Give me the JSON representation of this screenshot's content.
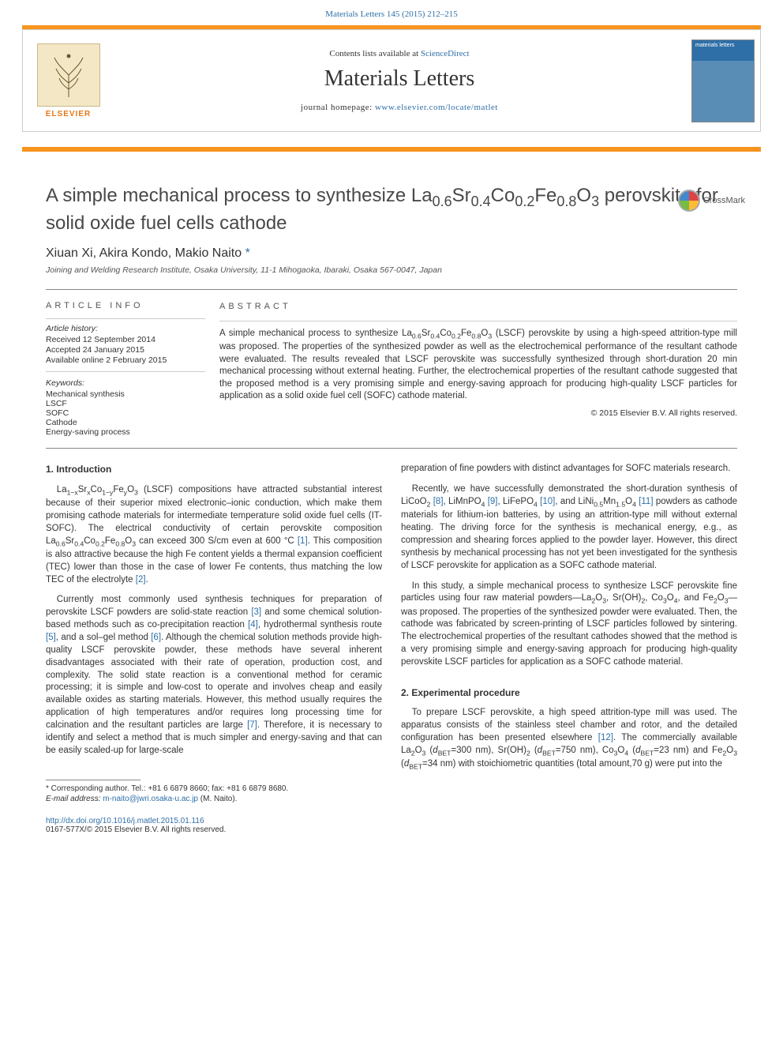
{
  "top_link": {
    "citation": "Materials Letters 145 (2015) 212–215",
    "color": "#2f6fa7"
  },
  "header": {
    "contents_prefix": "Contents lists available at ",
    "contents_link": "ScienceDirect",
    "journal_name": "Materials Letters",
    "homepage_prefix": "journal homepage: ",
    "homepage_url": "www.elsevier.com/locate/matlet",
    "publisher_name": "ELSEVIER",
    "cover_label": "materials letters",
    "orange_color": "#f7941e"
  },
  "title": {
    "html": "A simple mechanical process to synthesize La<sub>0.6</sub>Sr<sub>0.4</sub>Co<sub>0.2</sub>Fe<sub>0.8</sub>O<sub>3</sub> perovskite for solid oxide fuel cells cathode",
    "crossmark_label": "CrossMark"
  },
  "authors": {
    "list": "Xiuan Xi, Akira Kondo, Makio Naito",
    "corr_marker": "*"
  },
  "affiliation": "Joining and Welding Research Institute, Osaka University, 11-1 Mihogaoka, Ibaraki, Osaka 567-0047, Japan",
  "article_info": {
    "heading": "ARTICLE INFO",
    "history_label": "Article history:",
    "received": "Received 12 September 2014",
    "accepted": "Accepted 24 January 2015",
    "online": "Available online 2 February 2015",
    "keywords_label": "Keywords:",
    "keywords": [
      "Mechanical synthesis",
      "LSCF",
      "SOFC",
      "Cathode",
      "Energy-saving process"
    ]
  },
  "abstract": {
    "heading": "ABSTRACT",
    "text_html": "A simple mechanical process to synthesize La<sub>0.6</sub>Sr<sub>0.4</sub>Co<sub>0.2</sub>Fe<sub>0.8</sub>O<sub>3</sub> (LSCF) perovskite by using a high-speed attrition-type mill was proposed. The properties of the synthesized powder as well as the electrochemical performance of the resultant cathode were evaluated. The results revealed that LSCF perovskite was successfully synthesized through short-duration 20 min mechanical processing without external heating. Further, the electrochemical properties of the resultant cathode suggested that the proposed method is a very promising simple and energy-saving approach for producing high-quality LSCF particles for application as a solid oxide fuel cell (SOFC) cathode material.",
    "copyright": "© 2015 Elsevier B.V. All rights reserved."
  },
  "sections": {
    "intro_heading": "1.  Introduction",
    "intro_p1_html": "La<sub>1−x</sub>Sr<sub>x</sub>Co<sub>1−y</sub>Fe<sub>y</sub>O<sub>3</sub> (LSCF) compositions have attracted substantial interest because of their superior mixed electronic–ionic conduction, which make them promising cathode materials for intermediate temperature solid oxide fuel cells (IT-SOFC). The electrical conductivity of certain perovskite composition La<sub>0.6</sub>Sr<sub>0.4</sub>Co<sub>0.2</sub>Fe<sub>0.8</sub>O<sub>3</sub> can exceed 300 S/cm even at 600 °C <a class=\"ref\" href=\"#\">[1]</a>. This composition is also attractive because the high Fe content yields a thermal expansion coefficient (TEC) lower than those in the case of lower Fe contents, thus matching the low TEC of the electrolyte <a class=\"ref\" href=\"#\">[2]</a>.",
    "intro_p2_html": "Currently most commonly used synthesis techniques for preparation of perovskite LSCF powders are solid-state reaction <a class=\"ref\" href=\"#\">[3]</a> and some chemical solution-based methods such as co-precipitation reaction <a class=\"ref\" href=\"#\">[4]</a>, hydrothermal synthesis route <a class=\"ref\" href=\"#\">[5]</a>, and a sol–gel method <a class=\"ref\" href=\"#\">[6]</a>. Although the chemical solution methods provide high-quality LSCF perovskite powder, these methods have several inherent disadvantages associated with their rate of operation, production cost, and complexity. The solid state reaction is a conventional method for ceramic processing; it is simple and low-cost to operate and involves cheap and easily available oxides as starting materials. However, this method usually requires the application of high temperatures and/or requires long processing time for calcination and the resultant particles are large <a class=\"ref\" href=\"#\">[7]</a>. Therefore, it is necessary to identify and select a method that is much simpler and energy-saving and that can be easily scaled-up for large-scale",
    "col2_p1": "preparation of fine powders with distinct advantages for SOFC materials research.",
    "col2_p2_html": "Recently, we have successfully demonstrated the short-duration synthesis of LiCoO<sub>2</sub> <a class=\"ref\" href=\"#\">[8]</a>, LiMnPO<sub>4</sub> <a class=\"ref\" href=\"#\">[9]</a>, LiFePO<sub>4</sub> <a class=\"ref\" href=\"#\">[10]</a>, and LiNi<sub>0.5</sub>Mn<sub>1.5</sub>O<sub>4</sub> <a class=\"ref\" href=\"#\">[11]</a> powders as cathode materials for lithium-ion batteries, by using an attrition-type mill without external heating. The driving force for the synthesis is mechanical energy, e.g., as compression and shearing forces applied to the powder layer. However, this direct synthesis by mechanical processing has not yet been investigated for the synthesis of LSCF perovskite for application as a SOFC cathode material.",
    "col2_p3_html": "In this study, a simple mechanical process to synthesize LSCF perovskite fine particles using four raw material powders—La<sub>2</sub>O<sub>3</sub>, Sr(OH)<sub>2</sub>, Co<sub>3</sub>O<sub>4</sub>, and Fe<sub>2</sub>O<sub>3</sub>—was proposed. The properties of the synthesized powder were evaluated. Then, the cathode was fabricated by screen-printing of LSCF particles followed by sintering. The electrochemical properties of the resultant cathodes showed that the method is a very promising simple and energy-saving approach for producing high-quality perovskite LSCF particles for application as a SOFC cathode material.",
    "exp_heading": "2.  Experimental procedure",
    "exp_p1_html": "To prepare LSCF perovskite, a high speed attrition-type mill was used. The apparatus consists of the stainless steel chamber and rotor, and the detailed configuration has been presented elsewhere <a class=\"ref\" href=\"#\">[12]</a>. The commercially available La<sub>2</sub>O<sub>3</sub> (<i>d</i><sub>BET</sub>=300 nm), Sr(OH)<sub>2</sub> (<i>d</i><sub>BET</sub>=750 nm), Co<sub>3</sub>O<sub>4</sub> (<i>d</i><sub>BET</sub>=23 nm) and Fe<sub>2</sub>O<sub>3</sub> (<i>d</i><sub>BET</sub>=34 nm) with stoichiometric quantities (total amount,70 g) were put into the"
  },
  "footnote": {
    "corr": "* Corresponding author. Tel.: +81 6 6879 8660; fax: +81 6 6879 8680.",
    "email_label": "E-mail address: ",
    "email": "m-naito@jwri.osaka-u.ac.jp",
    "email_suffix": " (M. Naito)."
  },
  "doi": {
    "url": "http://dx.doi.org/10.1016/j.matlet.2015.01.116",
    "issn_line": "0167-577X/© 2015 Elsevier B.V. All rights reserved."
  },
  "colors": {
    "link": "#2f6fa7",
    "orange": "#f7941e",
    "text": "#333333",
    "rule": "#888888"
  }
}
